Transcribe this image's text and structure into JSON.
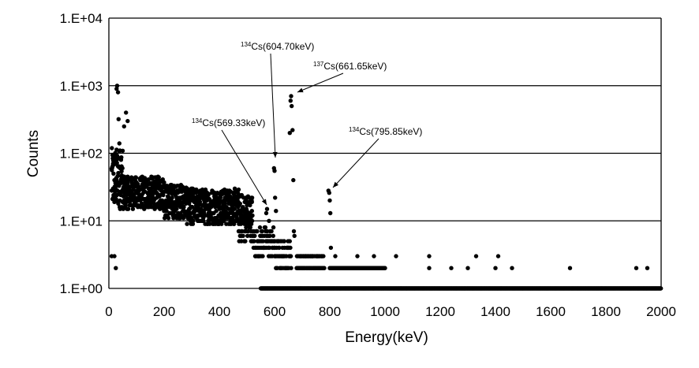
{
  "chart_data": {
    "type": "scatter",
    "xlabel": "Energy(keV)",
    "ylabel": "Counts",
    "xlim": [
      0,
      2000
    ],
    "ylim": [
      1,
      10000
    ],
    "y_scale": "log",
    "grid": "horizontal",
    "xticks": [
      "0",
      "200",
      "400",
      "600",
      "800",
      "1000",
      "1200",
      "1400",
      "1600",
      "1800",
      "2000"
    ],
    "yticks": [
      "1.E+00",
      "1.E+01",
      "1.E+02",
      "1.E+03",
      "1.E+04"
    ],
    "marker_color": "#000000",
    "annotations": [
      {
        "isotope_mass": "134",
        "text": "Cs(604.70keV)",
        "energy": 604.7,
        "counts": 60
      },
      {
        "isotope_mass": "137",
        "text": "Cs(661.65keV)",
        "energy": 661.65,
        "counts": 700
      },
      {
        "isotope_mass": "134",
        "text": "Cs(569.33keV)",
        "energy": 569.33,
        "counts": 18
      },
      {
        "isotope_mass": "134",
        "text": "Cs(795.85keV)",
        "energy": 795.85,
        "counts": 25
      }
    ],
    "segments": [
      {
        "from": 10,
        "to": 50,
        "min": 15,
        "max": 120
      },
      {
        "from": 50,
        "to": 200,
        "min": 15,
        "max": 45
      },
      {
        "from": 200,
        "to": 280,
        "min": 11,
        "max": 35
      },
      {
        "from": 280,
        "to": 470,
        "min": 9,
        "max": 30
      },
      {
        "from": 470,
        "to": 520,
        "min": 5,
        "max": 25
      },
      {
        "from": 520,
        "to": 600,
        "min": 3,
        "max": 8
      },
      {
        "from": 600,
        "to": 660,
        "min": 2,
        "max": 5
      },
      {
        "from": 680,
        "to": 780,
        "min": 2,
        "max": 3
      },
      {
        "from": 800,
        "to": 1000,
        "min": 2,
        "max": 2
      }
    ],
    "baseline": {
      "counts": 1,
      "from": 550,
      "to": 2000
    },
    "points": [
      [
        10,
        3
      ],
      [
        20,
        3
      ],
      [
        25,
        2
      ],
      [
        28,
        900
      ],
      [
        30,
        1000
      ],
      [
        33,
        800
      ],
      [
        35,
        320
      ],
      [
        38,
        140
      ],
      [
        40,
        110
      ],
      [
        55,
        250
      ],
      [
        62,
        400
      ],
      [
        68,
        300
      ],
      [
        570,
        13
      ],
      [
        573,
        15
      ],
      [
        580,
        10
      ],
      [
        598,
        60
      ],
      [
        600,
        55
      ],
      [
        602,
        22
      ],
      [
        605,
        14
      ],
      [
        655,
        200
      ],
      [
        658,
        600
      ],
      [
        660,
        700
      ],
      [
        662,
        500
      ],
      [
        665,
        220
      ],
      [
        668,
        40
      ],
      [
        670,
        7
      ],
      [
        672,
        6
      ],
      [
        795,
        28
      ],
      [
        798,
        26
      ],
      [
        800,
        20
      ],
      [
        802,
        13
      ],
      [
        804,
        4
      ],
      [
        820,
        3
      ],
      [
        900,
        3
      ],
      [
        960,
        3
      ],
      [
        1040,
        3
      ],
      [
        1160,
        3
      ],
      [
        1330,
        3
      ],
      [
        1410,
        3
      ],
      [
        1160,
        2
      ],
      [
        1240,
        2
      ],
      [
        1300,
        2
      ],
      [
        1400,
        2
      ],
      [
        1460,
        2
      ],
      [
        1670,
        2
      ],
      [
        1910,
        2
      ],
      [
        1950,
        2
      ]
    ]
  }
}
